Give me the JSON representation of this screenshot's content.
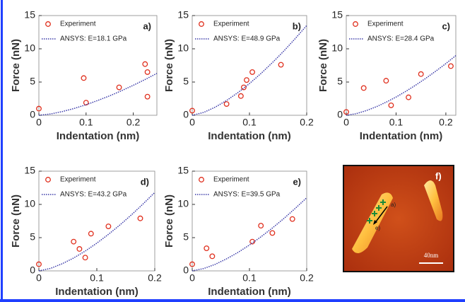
{
  "chart_data": [
    {
      "type": "scatter",
      "panel_label": "a)",
      "x_label": "Indentation (nm)",
      "y_label": "Force (nN)",
      "xlim": [
        0,
        0.25
      ],
      "xticks": [
        0,
        0.1,
        0.2
      ],
      "ylim": [
        0,
        15
      ],
      "yticks": [
        0,
        5,
        10,
        15
      ],
      "legend": "upper left",
      "series": [
        {
          "name": "Experiment",
          "color": "#e0301e",
          "marker": "circle",
          "x": [
            0,
            0.095,
            0.1,
            0.17,
            0.225,
            0.23,
            0.23
          ],
          "values": [
            1,
            5.6,
            1.9,
            4.2,
            7.7,
            6.5,
            2.8
          ]
        },
        {
          "name": "ANSYS: E=18.1 GPa",
          "color": "#3a3aa8",
          "marker": "dotted-line",
          "x": [
            0,
            0.025,
            0.05,
            0.075,
            0.1,
            0.125,
            0.15,
            0.175,
            0.2,
            0.225,
            0.25
          ],
          "values": [
            0,
            0.2,
            0.56,
            1.03,
            1.59,
            2.23,
            2.93,
            3.69,
            4.51,
            5.38,
            6.3
          ]
        }
      ]
    },
    {
      "type": "scatter",
      "panel_label": "b)",
      "x_label": "Indentation (nm)",
      "y_label": "Force (nN)",
      "xlim": [
        0,
        0.2
      ],
      "xticks": [
        0,
        0.1,
        0.2
      ],
      "ylim": [
        0,
        15
      ],
      "yticks": [
        0,
        5,
        10,
        15
      ],
      "legend": "upper left",
      "series": [
        {
          "name": "Experiment",
          "color": "#e0301e",
          "marker": "circle",
          "x": [
            0,
            0.06,
            0.085,
            0.09,
            0.095,
            0.105,
            0.155
          ],
          "values": [
            0.7,
            1.7,
            2.9,
            4.2,
            5.3,
            6.5,
            7.6
          ]
        },
        {
          "name": "ANSYS: E=48.9 GPa",
          "color": "#3a3aa8",
          "marker": "dotted-line",
          "x": [
            0,
            0.02,
            0.04,
            0.06,
            0.08,
            0.1,
            0.12,
            0.14,
            0.16,
            0.18,
            0.2
          ],
          "values": [
            0,
            0.43,
            1.21,
            2.22,
            3.42,
            4.77,
            6.28,
            7.91,
            9.66,
            11.54,
            13.5
          ]
        }
      ]
    },
    {
      "type": "scatter",
      "panel_label": "c)",
      "x_label": "Indentation (nm)",
      "y_label": "Force (nN)",
      "xlim": [
        0,
        0.22
      ],
      "xticks": [
        0,
        0.1,
        0.2
      ],
      "ylim": [
        0,
        15
      ],
      "yticks": [
        0,
        5,
        10,
        15
      ],
      "legend": "upper left",
      "series": [
        {
          "name": "Experiment",
          "color": "#e0301e",
          "marker": "circle",
          "x": [
            0,
            0.035,
            0.08,
            0.09,
            0.125,
            0.15,
            0.21
          ],
          "values": [
            0.5,
            4.1,
            5.2,
            1.5,
            2.7,
            6.2,
            7.4
          ]
        },
        {
          "name": "ANSYS: E=28.4 GPa",
          "color": "#3a3aa8",
          "marker": "dotted-line",
          "x": [
            0,
            0.02,
            0.04,
            0.06,
            0.08,
            0.1,
            0.12,
            0.14,
            0.16,
            0.18,
            0.2,
            0.22
          ],
          "values": [
            0,
            0.25,
            0.7,
            1.28,
            1.97,
            2.75,
            3.62,
            4.56,
            5.57,
            6.65,
            7.78,
            8.98
          ]
        }
      ]
    },
    {
      "type": "scatter",
      "panel_label": "d)",
      "x_label": "Indentation (nm)",
      "y_label": "Force (nN)",
      "xlim": [
        0,
        0.2
      ],
      "xticks": [
        0,
        0.1,
        0.2
      ],
      "ylim": [
        0,
        15
      ],
      "yticks": [
        0,
        5,
        10,
        15
      ],
      "legend": "upper left",
      "series": [
        {
          "name": "Experiment",
          "color": "#e0301e",
          "marker": "circle",
          "x": [
            0,
            0.06,
            0.07,
            0.08,
            0.09,
            0.12,
            0.175
          ],
          "values": [
            1,
            4.4,
            3.3,
            2,
            5.6,
            6.7,
            7.9
          ]
        },
        {
          "name": "ANSYS: E=43.2 GPa",
          "color": "#3a3aa8",
          "marker": "dotted-line",
          "x": [
            0,
            0.02,
            0.04,
            0.06,
            0.08,
            0.1,
            0.12,
            0.14,
            0.16,
            0.18,
            0.2
          ],
          "values": [
            0,
            0.37,
            1.06,
            1.94,
            2.98,
            4.17,
            5.49,
            6.92,
            8.45,
            10.08,
            11.8
          ]
        }
      ]
    },
    {
      "type": "scatter",
      "panel_label": "e)",
      "x_label": "Indentation (nm)",
      "y_label": "Force (nN)",
      "xlim": [
        0,
        0.2
      ],
      "xticks": [
        0,
        0.1,
        0.2
      ],
      "ylim": [
        0,
        15
      ],
      "yticks": [
        0,
        5,
        10,
        15
      ],
      "legend": "upper left",
      "series": [
        {
          "name": "Experiment",
          "color": "#e0301e",
          "marker": "circle",
          "x": [
            0,
            0.025,
            0.035,
            0.105,
            0.12,
            0.14,
            0.175
          ],
          "values": [
            1,
            3.4,
            2.2,
            4.4,
            6.8,
            5.7,
            7.8
          ]
        },
        {
          "name": "ANSYS: E=39.5 GPa",
          "color": "#3a3aa8",
          "marker": "dotted-line",
          "x": [
            0,
            0.02,
            0.04,
            0.06,
            0.08,
            0.1,
            0.12,
            0.14,
            0.16,
            0.18,
            0.2
          ],
          "values": [
            0,
            0.35,
            0.98,
            1.81,
            2.78,
            3.89,
            5.12,
            6.45,
            7.87,
            9.4,
            11.0
          ]
        }
      ]
    }
  ],
  "image_panel": {
    "label": "f)",
    "scale_bar": "40nm",
    "annotations": [
      "a)",
      "e)"
    ]
  }
}
